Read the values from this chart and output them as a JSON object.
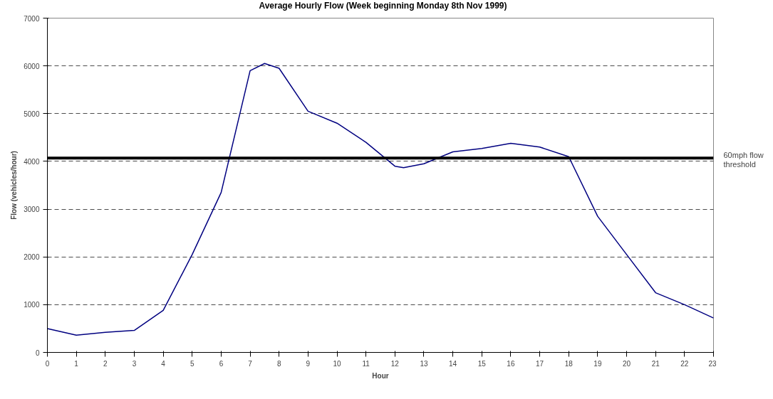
{
  "chart_data": {
    "type": "line",
    "title": "Average Hourly Flow (Week beginning Monday 8th Nov 1999)",
    "xlabel": "Hour",
    "ylabel": "Flow (vehicles/hour)",
    "x": [
      0,
      1,
      2,
      3,
      4,
      5,
      6,
      7,
      7.5,
      8,
      9,
      10,
      11,
      12,
      12.3,
      13,
      14,
      15,
      16,
      17,
      18,
      19,
      20,
      21,
      22,
      23
    ],
    "series": [
      {
        "color": "#000080",
        "values": [
          500,
          360,
          420,
          460,
          880,
          2050,
          3350,
          5900,
          6050,
          5950,
          5050,
          4800,
          4400,
          3900,
          3870,
          3950,
          4200,
          4270,
          4380,
          4300,
          4100,
          2850,
          2050,
          1250,
          1000,
          720
        ]
      }
    ],
    "xlim": [
      0,
      23
    ],
    "xticks": [
      0,
      1,
      2,
      3,
      4,
      5,
      6,
      7,
      8,
      9,
      10,
      11,
      12,
      13,
      14,
      15,
      16,
      17,
      18,
      19,
      20,
      21,
      22,
      23
    ],
    "ylim": [
      0,
      7000
    ],
    "yticks": [
      0,
      1000,
      2000,
      3000,
      4000,
      5000,
      6000,
      7000
    ],
    "grid": "y",
    "marker": "none",
    "line_style": "solid",
    "ref_lines": [
      {
        "axis": "y",
        "value": 4070,
        "label": "60mph flow threshold",
        "color": "#000000"
      }
    ]
  }
}
